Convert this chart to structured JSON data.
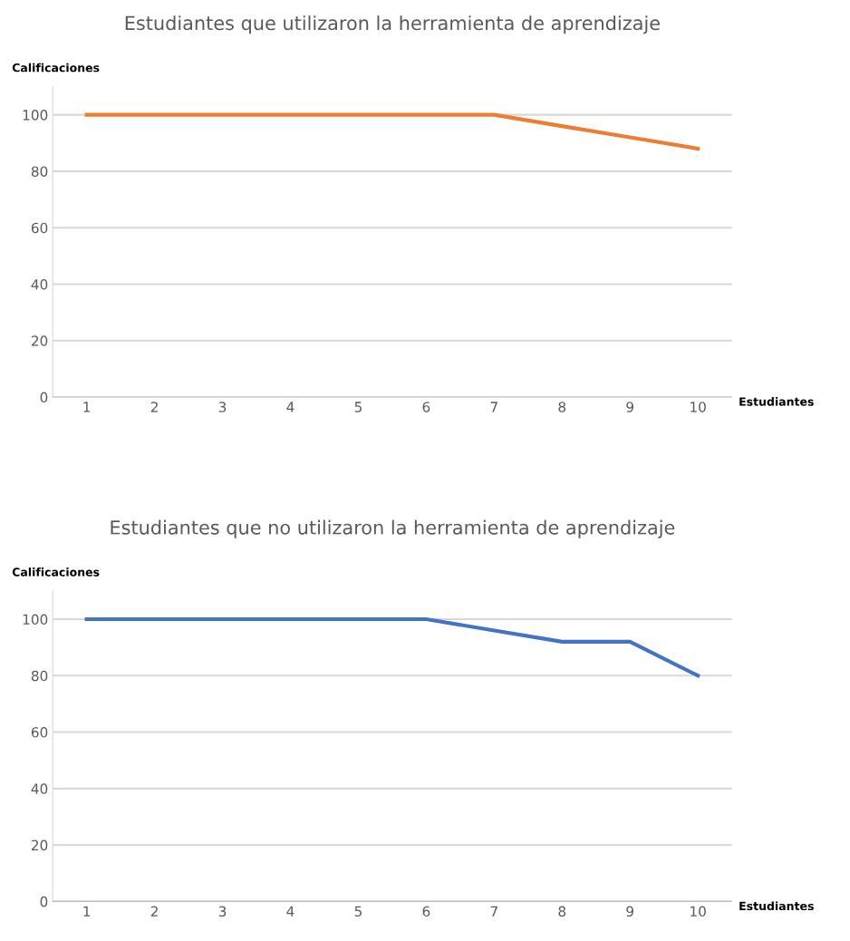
{
  "chart_data": [
    {
      "type": "line",
      "title": "Estudiantes que utilizaron la herramienta de aprendizaje",
      "xlabel": "Estudiantes",
      "ylabel": "Calificaciones",
      "categories": [
        "1",
        "2",
        "3",
        "4",
        "5",
        "6",
        "7",
        "8",
        "9",
        "10"
      ],
      "series": [
        {
          "color": "#ed7d31",
          "values": [
            100,
            100,
            100,
            100,
            100,
            100,
            100,
            96,
            92,
            88
          ]
        }
      ],
      "ylim": [
        0,
        110
      ],
      "yticks": [
        0,
        20,
        40,
        60,
        80,
        100
      ],
      "grid": "y",
      "legend": false,
      "marker": "none"
    },
    {
      "type": "line",
      "title": "Estudiantes que no utilizaron la herramienta de aprendizaje",
      "xlabel": "Estudiantes",
      "ylabel": "Calificaciones",
      "categories": [
        "1",
        "2",
        "3",
        "4",
        "5",
        "6",
        "7",
        "8",
        "9",
        "10"
      ],
      "series": [
        {
          "color": "#4472c4",
          "values": [
            100,
            100,
            100,
            100,
            100,
            100,
            96,
            92,
            92,
            80
          ]
        }
      ],
      "ylim": [
        0,
        110
      ],
      "yticks": [
        0,
        20,
        40,
        60,
        80,
        100
      ],
      "grid": "y",
      "legend": false,
      "marker": "none"
    }
  ]
}
